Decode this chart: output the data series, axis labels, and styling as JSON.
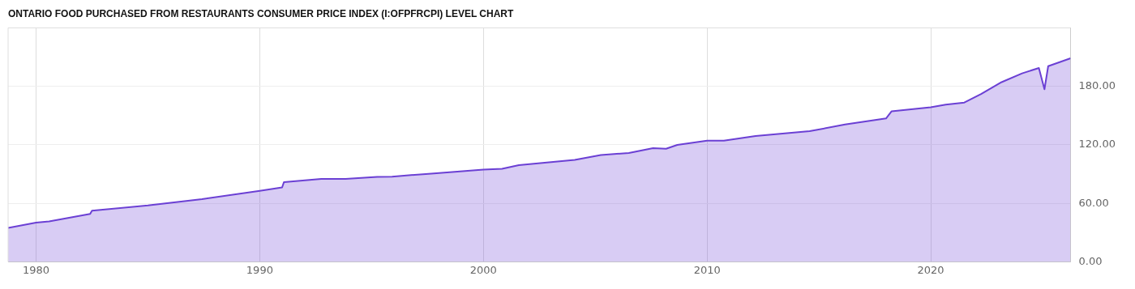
{
  "chart_data": {
    "type": "area",
    "title": "ONTARIO FOOD PURCHASED FROM RESTAURANTS CONSUMER PRICE INDEX (I:OFPFRCPI) LEVEL CHART",
    "x": [
      "1978-10",
      "1980-01",
      "1980-08",
      "1982-06",
      "1982-07",
      "1985-01",
      "1987-06",
      "1990-01",
      "1991-01",
      "1991-02",
      "1992-10",
      "1993-11",
      "1995-04",
      "1995-12",
      "1997-09",
      "2000-01",
      "2000-11",
      "2001-08",
      "2002-11",
      "2004-02",
      "2005-04",
      "2006-07",
      "2007-08",
      "2008-03",
      "2008-09",
      "2010-01",
      "2010-10",
      "2012-03",
      "2014-08",
      "2016-03",
      "2018-01",
      "2018-04",
      "2020-01",
      "2020-09",
      "2021-07",
      "2022-04",
      "2023-03",
      "2024-02",
      "2024-11",
      "2025-02",
      "2025-04",
      "2026-04"
    ],
    "series": [
      {
        "color": "#6b40d4",
        "values": [
          34.7,
          40.2,
          41.5,
          49.1,
          52.4,
          57.8,
          64.3,
          72.8,
          76.3,
          81.8,
          85.0,
          85.0,
          87.2,
          87.4,
          90.5,
          94.5,
          95.4,
          99.2,
          101.9,
          104.6,
          109.5,
          111.7,
          116.6,
          116.0,
          119.9,
          124.2,
          124.2,
          129.1,
          134.0,
          140.8,
          147.1,
          154.4,
          158.5,
          161.2,
          163.4,
          172.1,
          184.3,
          193.3,
          198.8,
          177.0,
          200.7,
          208.8
        ]
      }
    ],
    "xlim": [
      "1978-10",
      "2026-04"
    ],
    "xticks": [
      "1980",
      "1990",
      "2000",
      "2010",
      "2020"
    ],
    "ylim": [
      0,
      240
    ],
    "yticks": [
      {
        "value": 0,
        "label": "0.00"
      },
      {
        "value": 60,
        "label": "60.00"
      },
      {
        "value": 120,
        "label": "120.00"
      },
      {
        "value": 180,
        "label": "180.00"
      }
    ],
    "grid": true,
    "legend": false,
    "marker": "none",
    "line_style": "solid"
  }
}
